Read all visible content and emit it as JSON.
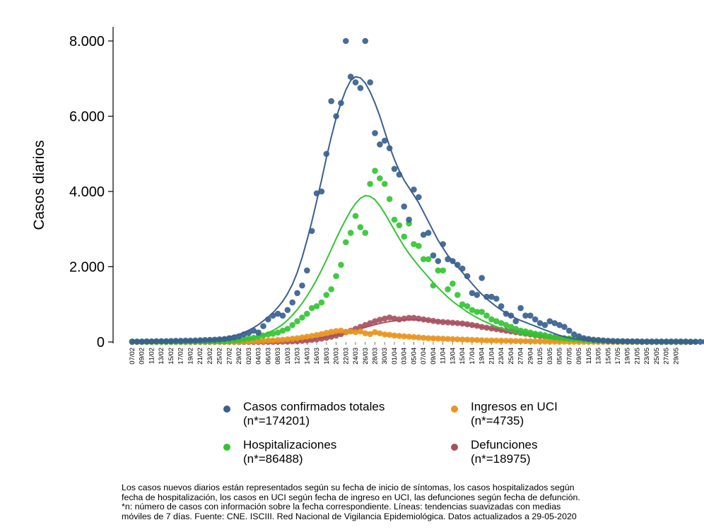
{
  "chart_data": {
    "type": "scatter",
    "title": "",
    "xlabel": "",
    "ylabel": "Casos diarios",
    "ylim": [
      0,
      8000
    ],
    "yticks": [
      0,
      2000,
      4000,
      6000,
      8000
    ],
    "yticklabels": [
      "0",
      "2.000",
      "4.000",
      "6.000",
      "8.000"
    ],
    "x_start_label": "07/02",
    "x_tick_labels": [
      "07/02",
      "09/02",
      "11/02",
      "13/02",
      "15/02",
      "17/02",
      "19/02",
      "21/02",
      "23/02",
      "25/02",
      "27/02",
      "29/02",
      "02/03",
      "04/03",
      "06/03",
      "08/03",
      "10/03",
      "12/03",
      "14/03",
      "16/03",
      "18/03",
      "20/03",
      "22/03",
      "24/03",
      "26/03",
      "28/03",
      "30/03",
      "01/04",
      "03/04",
      "05/04",
      "07/04",
      "09/04",
      "11/04",
      "13/04",
      "15/04",
      "17/04",
      "19/04",
      "21/04",
      "23/04",
      "25/04",
      "27/04",
      "29/04",
      "01/05",
      "03/05",
      "05/05",
      "07/05",
      "09/05",
      "11/05",
      "13/05",
      "15/05",
      "17/05",
      "19/05",
      "21/05",
      "23/05",
      "25/05",
      "27/05",
      "29/05"
    ],
    "grid": false,
    "legend_position": "bottom",
    "series": [
      {
        "name": "Casos confirmados totales",
        "legend_n": "(n*=174201)",
        "color": "#3a5f8f",
        "points": [
          10,
          10,
          10,
          15,
          15,
          20,
          20,
          20,
          25,
          30,
          30,
          35,
          35,
          40,
          45,
          50,
          55,
          60,
          70,
          80,
          100,
          120,
          150,
          200,
          240,
          300,
          250,
          420,
          600,
          700,
          750,
          700,
          850,
          1050,
          1300,
          1500,
          1900,
          2950,
          3950,
          4000,
          5000,
          6400,
          6000,
          6350,
          8000,
          7050,
          6900,
          6750,
          8000,
          6900,
          5550,
          5250,
          5350,
          5150,
          4600,
          4450,
          3600,
          3250,
          4050,
          3850,
          2850,
          2900,
          2300,
          2150,
          2600,
          2200,
          2150,
          2050,
          1950,
          1750,
          1300,
          1250,
          1700,
          1200,
          1200,
          1150,
          950,
          750,
          700,
          550,
          900,
          700,
          700,
          600,
          500,
          450,
          550,
          500,
          450,
          400,
          300,
          200,
          150,
          100,
          80,
          60,
          50,
          40,
          30,
          25,
          20,
          20,
          15,
          15,
          15,
          10,
          10,
          10,
          10,
          10,
          10,
          10,
          10,
          10,
          10,
          5,
          5,
          5,
          5,
          5
        ],
        "trend": [
          10,
          10,
          12,
          14,
          15,
          18,
          20,
          22,
          25,
          28,
          32,
          35,
          40,
          45,
          50,
          57,
          65,
          75,
          88,
          110,
          135,
          165,
          200,
          250,
          310,
          380,
          460,
          560,
          660,
          780,
          920,
          1080,
          1280,
          1530,
          1850,
          2250,
          2700,
          3200,
          3750,
          4300,
          4900,
          5450,
          5950,
          6350,
          6700,
          6950,
          7050,
          7020,
          6880,
          6650,
          6350,
          6000,
          5600,
          5200,
          4850,
          4550,
          4300,
          4100,
          3900,
          3700,
          3450,
          3200,
          2950,
          2700,
          2500,
          2300,
          2150,
          2000,
          1850,
          1700,
          1550,
          1400,
          1270,
          1150,
          1040,
          940,
          850,
          770,
          700,
          630,
          570,
          520,
          470,
          420,
          370,
          320,
          270,
          220,
          175,
          140,
          110,
          85,
          65,
          50,
          40,
          32,
          26,
          21,
          18,
          15,
          13,
          12,
          11,
          10,
          9,
          9,
          8,
          8,
          7,
          7,
          7,
          6,
          6,
          6,
          5,
          5,
          5
        ]
      },
      {
        "name": "Hospitalizaciones",
        "legend_n": "(n*=86488)",
        "color": "#33c433",
        "points": [
          5,
          5,
          5,
          5,
          5,
          5,
          5,
          5,
          5,
          5,
          5,
          5,
          10,
          10,
          10,
          10,
          15,
          15,
          20,
          20,
          30,
          40,
          50,
          70,
          90,
          110,
          140,
          170,
          200,
          220,
          250,
          300,
          350,
          450,
          550,
          650,
          750,
          900,
          950,
          1050,
          1250,
          1400,
          1750,
          2050,
          2650,
          2900,
          3350,
          3050,
          2900,
          4200,
          4550,
          4350,
          4200,
          3800,
          3250,
          3100,
          2800,
          3150,
          2600,
          2550,
          2200,
          2200,
          1500,
          1900,
          1900,
          1400,
          1550,
          1250,
          1000,
          950,
          850,
          800,
          800,
          700,
          600,
          550,
          500,
          450,
          400,
          350,
          300,
          280,
          250,
          220,
          200,
          180,
          150,
          130,
          110,
          100,
          90,
          80,
          70,
          60,
          50,
          40,
          35,
          30,
          25,
          20,
          18,
          15,
          12,
          10,
          10,
          8,
          8,
          6,
          6,
          5,
          5,
          5,
          5,
          5,
          5,
          5,
          5
        ],
        "trend": [
          5,
          5,
          5,
          5,
          5,
          5,
          5,
          5,
          5,
          5,
          5,
          6,
          7,
          9,
          11,
          14,
          17,
          21,
          26,
          32,
          40,
          50,
          62,
          78,
          98,
          123,
          155,
          195,
          245,
          305,
          380,
          470,
          580,
          710,
          860,
          1030,
          1220,
          1430,
          1660,
          1910,
          2180,
          2460,
          2740,
          3010,
          3260,
          3490,
          3680,
          3820,
          3890,
          3870,
          3780,
          3620,
          3420,
          3200,
          2970,
          2750,
          2540,
          2350,
          2180,
          2020,
          1870,
          1720,
          1580,
          1440,
          1310,
          1190,
          1080,
          980,
          890,
          800,
          720,
          650,
          580,
          520,
          460,
          410,
          360,
          320,
          280,
          245,
          215,
          190,
          165,
          145,
          125,
          108,
          93,
          80,
          68,
          58,
          49,
          41,
          35,
          29,
          24,
          20,
          17,
          14,
          12,
          10,
          9,
          8,
          7,
          6,
          6,
          5,
          5,
          5,
          5,
          5,
          5,
          5,
          5,
          5,
          5,
          5,
          5
        ]
      },
      {
        "name": "Ingresos en UCI",
        "legend_n": "(n*=4735)",
        "color": "#e8961e",
        "points": [
          0,
          0,
          0,
          0,
          0,
          0,
          0,
          0,
          0,
          0,
          0,
          0,
          0,
          0,
          0,
          0,
          2,
          3,
          4,
          5,
          6,
          8,
          10,
          12,
          15,
          18,
          22,
          28,
          35,
          42,
          50,
          60,
          72,
          85,
          100,
          120,
          140,
          160,
          185,
          210,
          240,
          270,
          290,
          300,
          270,
          280,
          260,
          280,
          230,
          210,
          260,
          230,
          200,
          190,
          170,
          160,
          150,
          140,
          130,
          120,
          110,
          100,
          95,
          90,
          85,
          80,
          75,
          70,
          65,
          60,
          55,
          50,
          45,
          40,
          38,
          35,
          32,
          30,
          28,
          25,
          22,
          20,
          18,
          16,
          14,
          12,
          10,
          9,
          8,
          7,
          6,
          5,
          4,
          4,
          3,
          3,
          2,
          2,
          2,
          1,
          1,
          1,
          1,
          1,
          0,
          0,
          0,
          0,
          0,
          0,
          0,
          0,
          0,
          0,
          0,
          0
        ],
        "trend": [
          0,
          0,
          0,
          0,
          0,
          0,
          0,
          0,
          0,
          0,
          0,
          0,
          0,
          0,
          0,
          1,
          2,
          3,
          4,
          5,
          6,
          8,
          10,
          12,
          15,
          18,
          22,
          28,
          34,
          41,
          50,
          60,
          72,
          85,
          100,
          118,
          138,
          160,
          182,
          205,
          228,
          248,
          262,
          272,
          276,
          274,
          268,
          260,
          250,
          238,
          226,
          214,
          202,
          190,
          178,
          166,
          155,
          144,
          134,
          124,
          115,
          106,
          98,
          91,
          84,
          78,
          72,
          66,
          61,
          56,
          51,
          47,
          43,
          39,
          36,
          33,
          30,
          27,
          25,
          22,
          20,
          18,
          16,
          14,
          13,
          11,
          10,
          9,
          8,
          7,
          6,
          5,
          4,
          4,
          3,
          3,
          2,
          2,
          2,
          1,
          1,
          1,
          1,
          1,
          0,
          0,
          0,
          0,
          0,
          0,
          0,
          0,
          0,
          0,
          0,
          0
        ]
      },
      {
        "name": "Defunciones",
        "legend_n": "(n*=18975)",
        "color": "#a8515e",
        "points": [
          0,
          0,
          0,
          0,
          0,
          0,
          0,
          0,
          0,
          0,
          0,
          0,
          0,
          0,
          0,
          0,
          0,
          0,
          0,
          0,
          0,
          0,
          0,
          0,
          0,
          0,
          0,
          0,
          2,
          3,
          5,
          8,
          10,
          15,
          20,
          30,
          40,
          55,
          70,
          90,
          110,
          140,
          170,
          210,
          260,
          300,
          350,
          400,
          450,
          500,
          550,
          590,
          620,
          650,
          620,
          600,
          620,
          640,
          640,
          620,
          600,
          580,
          560,
          540,
          530,
          520,
          510,
          500,
          490,
          470,
          450,
          430,
          400,
          380,
          360,
          340,
          320,
          300,
          280,
          260,
          240,
          220,
          200,
          180,
          160,
          140,
          120,
          100,
          90,
          80,
          70,
          60,
          50,
          40,
          30,
          25,
          20,
          15,
          10,
          8,
          6,
          5,
          4,
          3,
          2,
          2,
          1,
          1,
          1,
          0,
          0,
          0,
          0,
          0,
          0,
          0
        ],
        "trend": [
          0,
          0,
          0,
          0,
          0,
          0,
          0,
          0,
          0,
          0,
          0,
          0,
          0,
          0,
          0,
          0,
          0,
          0,
          0,
          0,
          0,
          0,
          1,
          1,
          2,
          3,
          4,
          5,
          7,
          9,
          12,
          16,
          21,
          27,
          35,
          44,
          56,
          70,
          86,
          105,
          127,
          152,
          180,
          210,
          242,
          276,
          312,
          350,
          388,
          425,
          460,
          492,
          520,
          544,
          562,
          574,
          582,
          586,
          586,
          583,
          578,
          571,
          562,
          551,
          539,
          525,
          510,
          494,
          477,
          459,
          440,
          420,
          400,
          380,
          359,
          338,
          317,
          296,
          275,
          254,
          234,
          214,
          195,
          176,
          158,
          141,
          125,
          110,
          96,
          84,
          72,
          62,
          53,
          45,
          38,
          32,
          27,
          22,
          18,
          15,
          12,
          10,
          8,
          6,
          5,
          4,
          3,
          2,
          2,
          1,
          1,
          1,
          0,
          0,
          0,
          0,
          0
        ]
      }
    ]
  },
  "legend": [
    {
      "label": "Casos confirmados totales",
      "n": "(n*=174201)",
      "color": "#3a5f8f"
    },
    {
      "label": "Ingresos en UCI",
      "n": "(n*=4735)",
      "color": "#e8961e"
    },
    {
      "label": "Hospitalizaciones",
      "n": "(n*=86488)",
      "color": "#33c433"
    },
    {
      "label": "Defunciones",
      "n": "(n*=18975)",
      "color": "#a8515e"
    }
  ],
  "footnote": {
    "line1": "Los casos nuevos diarios están representados según su fecha de inicio de síntomas, los casos hospitalizados según",
    "line2": "fecha de hospitalización, los casos en UCI según fecha de ingreso en UCI, las defunciones según fecha de defunción.",
    "line3": "*n: número de casos con información sobre la fecha correspondiente. Líneas: tendencias suavizadas con medias",
    "line4": "móviles de 7 días. Fuente: CNE. ISCIII. Red Nacional de Vigilancia Epidemiológica. Datos actualizados a 29-05-2020"
  }
}
